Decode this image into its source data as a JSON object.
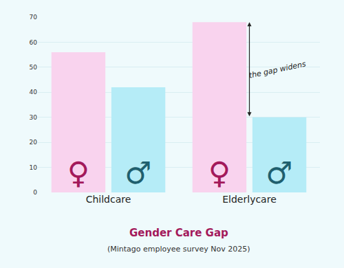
{
  "chart_data": {
    "type": "bar",
    "title": "Gender Care Gap",
    "subtitle": "(Mintago employee survey Nov 2025)",
    "categories": [
      "Childcare",
      "Elderlycare"
    ],
    "series": [
      {
        "name": "♀",
        "color": "#f9d3ee",
        "values": [
          56,
          68
        ]
      },
      {
        "name": "♂",
        "color": "#b5ecf7",
        "values": [
          42,
          30
        ]
      }
    ],
    "ylim": [
      0,
      70
    ],
    "yticks": [
      0,
      10,
      20,
      30,
      40,
      50,
      60,
      70
    ],
    "grid": true,
    "annotations": [
      {
        "text": "the gap widens",
        "category": "Elderlycare"
      }
    ]
  }
}
